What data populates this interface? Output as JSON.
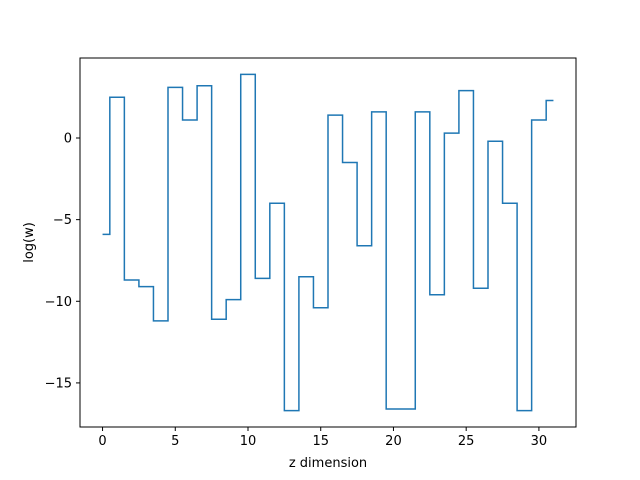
{
  "chart_data": {
    "type": "line",
    "drawstyle": "steps-mid",
    "title": "",
    "xlabel": "z dimension",
    "ylabel": "log(w)",
    "xlim": [
      -1.55,
      32.55
    ],
    "ylim": [
      -17.7,
      4.9
    ],
    "xticks": [
      0,
      5,
      10,
      15,
      20,
      25,
      30
    ],
    "yticks": [
      -15,
      -10,
      -5,
      0
    ],
    "grid": false,
    "legend": "none",
    "series": [
      {
        "color": "#1f77b4",
        "x": [
          0,
          1,
          2,
          3,
          4,
          5,
          6,
          7,
          8,
          9,
          10,
          11,
          12,
          13,
          14,
          15,
          16,
          17,
          18,
          19,
          20,
          21,
          22,
          23,
          24,
          25,
          26,
          27,
          28,
          29,
          30,
          31
        ],
        "y": [
          -5.9,
          2.5,
          -8.7,
          -9.1,
          -11.2,
          3.1,
          1.1,
          3.2,
          -11.1,
          -9.9,
          3.9,
          -8.6,
          -4.0,
          -16.7,
          -8.5,
          -10.4,
          1.4,
          -1.5,
          -6.6,
          1.6,
          -16.6,
          -16.6,
          1.6,
          -9.6,
          0.3,
          2.9,
          -9.2,
          -0.2,
          -4.0,
          -16.7,
          1.1,
          2.3
        ]
      }
    ]
  }
}
